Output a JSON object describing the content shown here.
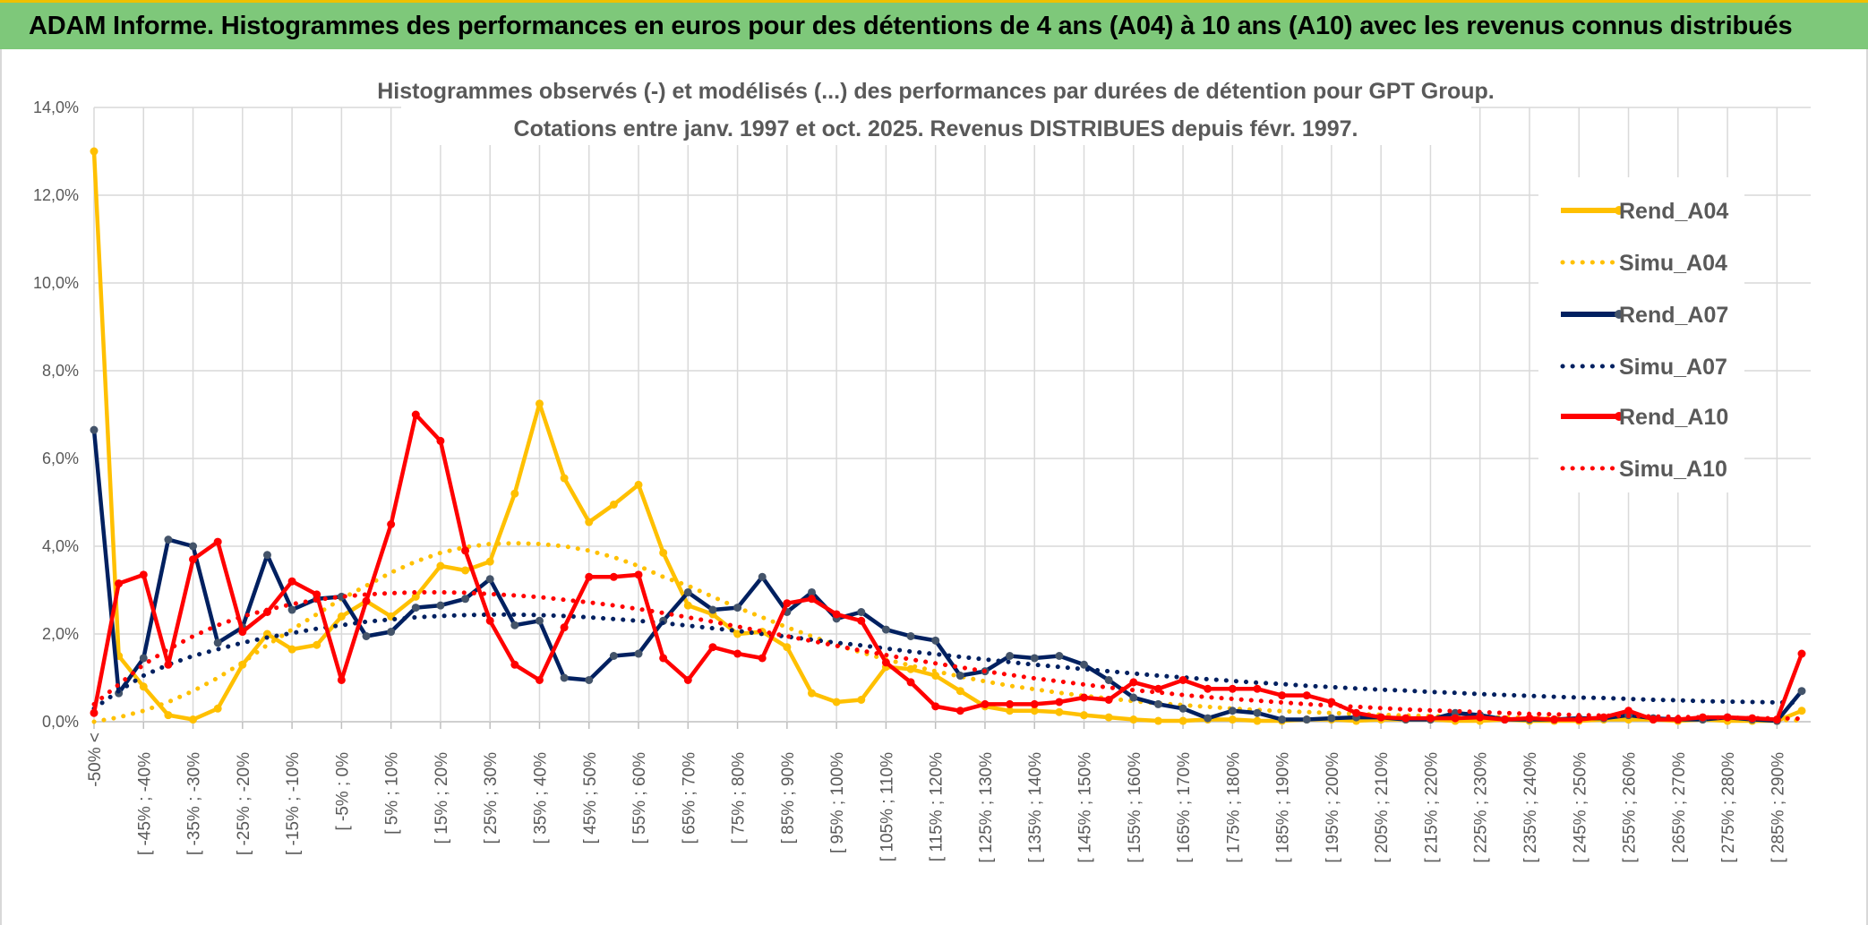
{
  "page": {
    "banner_title": "ADAM Informe. Histogrammes des performances en euros pour des détentions de 4 ans (A04) à 10 ans (A10) avec les revenus connus distribués"
  },
  "chart_data": {
    "type": "line",
    "title": "Histogrammes observés (-) et modélisés (...) des performances par durées de détention pour GPT Group.",
    "subtitle": "Cotations entre janv. 1997 et oct. 2025. Revenus DISTRIBUES depuis févr. 1997.",
    "xlabel": "",
    "ylabel": "",
    "ylim": [
      0,
      14
    ],
    "y_ticks": [
      "0,0%",
      "2,0%",
      "4,0%",
      "6,0%",
      "8,0%",
      "10,0%",
      "12,0%",
      "14,0%"
    ],
    "grid": true,
    "legend_position": "right",
    "x_tick_labels": [
      "-50% <",
      "[ -45% ; -40%",
      "[ -35% ; -30%",
      "[ -25% ; -20%",
      "[ -15% ; -10%",
      "[ -5% ; 0%",
      "[ 5% ; 10%",
      "[ 15% ; 20%",
      "[ 25% ; 30%",
      "[ 35% ; 40%",
      "[ 45% ; 50%",
      "[ 55% ; 60%",
      "[ 65% ; 70%",
      "[ 75% ; 80%",
      "[ 85% ; 90%",
      "[ 95% ; 100%",
      "[ 105% ; 110%",
      "[ 115% ; 120%",
      "[ 125% ; 130%",
      "[ 135% ; 140%",
      "[ 145% ; 150%",
      "[ 155% ; 160%",
      "[ 165% ; 170%",
      "[ 175% ; 180%",
      "[ 185% ; 190%",
      "[ 195% ; 200%",
      "[ 205% ; 210%",
      "[ 215% ; 220%",
      "[ 225% ; 230%",
      "[ 235% ; 240%",
      "[ 245% ; 250%",
      "[ 255% ; 260%",
      "[ 265% ; 270%",
      "[ 275% ; 280%",
      "[ 285% ; 290%"
    ],
    "n_points": 70,
    "series": [
      {
        "name": "Rend_A04",
        "style": "solid",
        "color": "#ffc000",
        "values": [
          13.0,
          1.5,
          0.8,
          0.15,
          0.05,
          0.3,
          1.3,
          2.0,
          1.65,
          1.75,
          2.4,
          2.75,
          2.4,
          2.85,
          3.55,
          3.45,
          3.65,
          5.2,
          7.25,
          5.55,
          4.55,
          4.95,
          5.4,
          3.85,
          2.65,
          2.45,
          2.0,
          2.05,
          1.7,
          0.65,
          0.45,
          0.5,
          1.25,
          1.2,
          1.05,
          0.7,
          0.35,
          0.25,
          0.25,
          0.22,
          0.15,
          0.1,
          0.05,
          0.02,
          0.02,
          0.05,
          0.05,
          0.02,
          0.02,
          0.05,
          0.05,
          0.02,
          0.05,
          0.05,
          0.05,
          0.02,
          0.02,
          0.05,
          0.02,
          0.02,
          0.02,
          0.05,
          0.05,
          0.05,
          0.02,
          0.05,
          0.02,
          0.02,
          0.02,
          0.25
        ]
      },
      {
        "name": "Simu_A04",
        "style": "dotted",
        "color": "#ffc000",
        "values": [
          0.0,
          0.1,
          0.25,
          0.45,
          0.7,
          1.0,
          1.35,
          1.75,
          2.1,
          2.45,
          2.8,
          3.1,
          3.4,
          3.65,
          3.85,
          3.98,
          4.05,
          4.07,
          4.05,
          4.0,
          3.9,
          3.75,
          3.55,
          3.3,
          3.1,
          2.85,
          2.6,
          2.38,
          2.15,
          1.95,
          1.75,
          1.58,
          1.42,
          1.28,
          1.15,
          1.03,
          0.92,
          0.82,
          0.74,
          0.66,
          0.59,
          0.53,
          0.47,
          0.42,
          0.38,
          0.34,
          0.3,
          0.27,
          0.24,
          0.22,
          0.2,
          0.18,
          0.16,
          0.14,
          0.13,
          0.12,
          0.11,
          0.1,
          0.09,
          0.08,
          0.07,
          0.07,
          0.06,
          0.06,
          0.05,
          0.05,
          0.04,
          0.04,
          0.04,
          0.03
        ]
      },
      {
        "name": "Rend_A07",
        "style": "solid",
        "color": "#002060",
        "values": [
          6.65,
          0.65,
          1.45,
          4.15,
          4.0,
          1.8,
          2.15,
          3.8,
          2.55,
          2.8,
          2.85,
          1.95,
          2.05,
          2.6,
          2.65,
          2.8,
          3.25,
          2.2,
          2.3,
          1.0,
          0.95,
          1.5,
          1.55,
          2.3,
          2.95,
          2.55,
          2.6,
          3.3,
          2.5,
          2.95,
          2.35,
          2.5,
          2.1,
          1.95,
          1.85,
          1.05,
          1.15,
          1.5,
          1.45,
          1.5,
          1.3,
          0.95,
          0.55,
          0.4,
          0.3,
          0.08,
          0.25,
          0.2,
          0.05,
          0.05,
          0.08,
          0.1,
          0.1,
          0.05,
          0.05,
          0.2,
          0.15,
          0.05,
          0.05,
          0.05,
          0.08,
          0.08,
          0.15,
          0.08,
          0.05,
          0.05,
          0.1,
          0.05,
          0.02,
          0.7
        ]
      },
      {
        "name": "Simu_A07",
        "style": "dotted",
        "color": "#002060",
        "values": [
          0.3,
          0.7,
          1.05,
          1.3,
          1.5,
          1.65,
          1.8,
          1.92,
          2.02,
          2.12,
          2.2,
          2.28,
          2.33,
          2.38,
          2.41,
          2.43,
          2.44,
          2.44,
          2.43,
          2.41,
          2.38,
          2.34,
          2.3,
          2.25,
          2.19,
          2.13,
          2.07,
          2.0,
          1.94,
          1.87,
          1.8,
          1.74,
          1.67,
          1.6,
          1.54,
          1.48,
          1.42,
          1.36,
          1.3,
          1.25,
          1.2,
          1.15,
          1.1,
          1.05,
          1.01,
          0.97,
          0.93,
          0.89,
          0.86,
          0.82,
          0.79,
          0.76,
          0.73,
          0.71,
          0.68,
          0.66,
          0.63,
          0.61,
          0.59,
          0.57,
          0.55,
          0.54,
          0.52,
          0.5,
          0.49,
          0.47,
          0.46,
          0.45,
          0.44,
          0.43
        ]
      },
      {
        "name": "Rend_A10",
        "style": "solid",
        "color": "#ff0000",
        "values": [
          0.2,
          3.15,
          3.35,
          1.3,
          3.7,
          4.1,
          2.05,
          2.5,
          3.2,
          2.9,
          0.95,
          2.75,
          4.5,
          7.0,
          6.4,
          3.9,
          2.3,
          1.3,
          0.95,
          2.15,
          3.3,
          3.3,
          3.35,
          1.45,
          0.95,
          1.7,
          1.55,
          1.45,
          2.7,
          2.8,
          2.45,
          2.3,
          1.35,
          0.9,
          0.35,
          0.25,
          0.4,
          0.4,
          0.4,
          0.45,
          0.55,
          0.5,
          0.9,
          0.75,
          0.95,
          0.75,
          0.75,
          0.75,
          0.6,
          0.6,
          0.45,
          0.2,
          0.1,
          0.08,
          0.08,
          0.08,
          0.1,
          0.05,
          0.08,
          0.05,
          0.05,
          0.1,
          0.25,
          0.05,
          0.05,
          0.1,
          0.1,
          0.08,
          0.05,
          1.55
        ]
      },
      {
        "name": "Simu_A10",
        "style": "dotted",
        "color": "#ff0000",
        "values": [
          0.4,
          0.85,
          1.3,
          1.65,
          1.95,
          2.2,
          2.4,
          2.55,
          2.68,
          2.78,
          2.85,
          2.9,
          2.93,
          2.95,
          2.95,
          2.94,
          2.91,
          2.88,
          2.84,
          2.78,
          2.72,
          2.65,
          2.57,
          2.48,
          2.38,
          2.28,
          2.17,
          2.06,
          1.95,
          1.84,
          1.73,
          1.62,
          1.52,
          1.42,
          1.33,
          1.24,
          1.15,
          1.07,
          0.99,
          0.92,
          0.85,
          0.78,
          0.72,
          0.67,
          0.61,
          0.56,
          0.52,
          0.48,
          0.44,
          0.4,
          0.37,
          0.34,
          0.31,
          0.28,
          0.26,
          0.24,
          0.22,
          0.2,
          0.18,
          0.17,
          0.15,
          0.14,
          0.13,
          0.12,
          0.11,
          0.1,
          0.09,
          0.08,
          0.08,
          0.07
        ]
      }
    ]
  }
}
